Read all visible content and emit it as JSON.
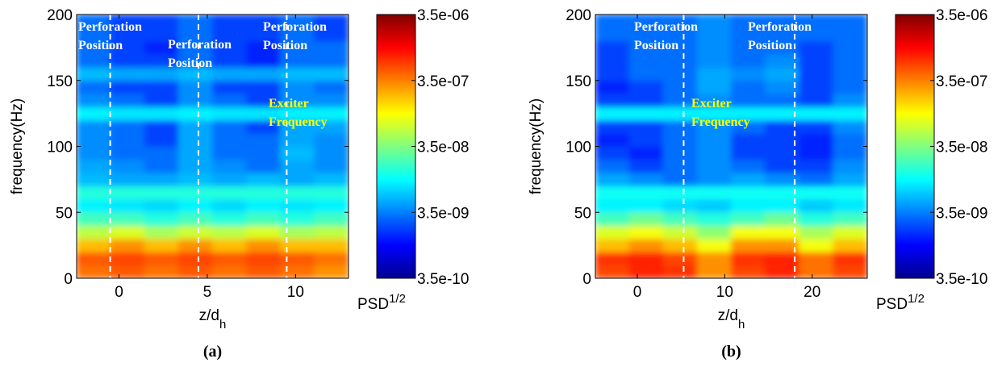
{
  "chart_data": [
    {
      "type": "heatmap",
      "caption": "(a)",
      "ylabel": "frequency(Hz)",
      "xlabel": "z/d",
      "xlabel_sub": "h",
      "colorbar_label": "PSD",
      "colorbar_label_sup": "1/2",
      "colormap": "jet",
      "color_scale": "log",
      "xlim": [
        -2.4,
        13
      ],
      "xticks": [
        0,
        5,
        10
      ],
      "ylim": [
        0,
        200
      ],
      "yticks": [
        0,
        50,
        100,
        150,
        200
      ],
      "clim": [
        3.5e-10,
        3.5e-06
      ],
      "cticks": [
        {
          "value": 3.5e-10,
          "label": "3.5e-10"
        },
        {
          "value": 3.5e-09,
          "label": "3.5e-09"
        },
        {
          "value": 3.5e-08,
          "label": "3.5e-08"
        },
        {
          "value": 3.5e-07,
          "label": "3.5e-07"
        },
        {
          "value": 3.5e-06,
          "label": "3.5e-06"
        }
      ],
      "perforation_z": [
        -0.5,
        4.5,
        9.5
      ],
      "annotations": [
        {
          "lines": [
            "Perforation",
            "Position"
          ],
          "color": "#ffffff"
        },
        {
          "lines": [
            "Perforation",
            "Position"
          ],
          "color": "#ffffff"
        },
        {
          "lines": [
            "Perforation",
            "Position"
          ],
          "color": "#ffffff"
        },
        {
          "lines": [
            "Exciter",
            "Frequency"
          ],
          "color": "#ffff00"
        }
      ],
      "x_bins": [
        -2.4,
        -0.475,
        1.45,
        3.375,
        5.3,
        7.225,
        9.15,
        11.075,
        13
      ],
      "y_bins": [
        0,
        10,
        20,
        30,
        40,
        50,
        60,
        70,
        80,
        90,
        100,
        110,
        120,
        130,
        140,
        150,
        160,
        170,
        180,
        190,
        200
      ],
      "values": [
        [
          4e-07,
          5e-07,
          4e-07,
          5e-07,
          4e-07,
          5e-07,
          4e-07,
          3e-07
        ],
        [
          5e-07,
          6e-07,
          5e-07,
          6e-07,
          5e-07,
          6e-07,
          5e-07,
          4e-07
        ],
        [
          2e-07,
          3e-07,
          2e-07,
          3e-07,
          2e-07,
          3e-07,
          2e-07,
          2e-07
        ],
        [
          6e-08,
          8e-08,
          5e-08,
          7e-08,
          6e-08,
          8e-08,
          5e-08,
          6e-08
        ],
        [
          2e-08,
          2e-08,
          1.5e-08,
          2e-08,
          1.5e-08,
          2e-08,
          1.5e-08,
          2e-08
        ],
        [
          1e-08,
          9e-09,
          8e-09,
          1e-08,
          8e-09,
          1e-08,
          9e-09,
          1e-08
        ],
        [
          1.5e-08,
          1.5e-08,
          1.5e-08,
          1.5e-08,
          1.5e-08,
          1.5e-08,
          1.5e-08,
          1.5e-08
        ],
        [
          6e-09,
          5e-09,
          5e-09,
          6e-09,
          5e-09,
          6e-09,
          5e-09,
          6e-09
        ],
        [
          5e-09,
          4e-09,
          3e-09,
          5e-09,
          4e-09,
          3e-09,
          5e-09,
          4e-09
        ],
        [
          4e-09,
          3e-09,
          3e-09,
          5e-09,
          3e-09,
          3e-09,
          6e-09,
          4e-09
        ],
        [
          4e-09,
          3e-09,
          2e-09,
          5e-09,
          3e-09,
          3e-09,
          5e-09,
          4e-09
        ],
        [
          4e-09,
          3e-09,
          2e-09,
          5e-09,
          3e-09,
          2e-09,
          5e-09,
          5e-09
        ],
        [
          1e-08,
          9e-09,
          9e-09,
          1e-08,
          9e-09,
          9e-09,
          1e-08,
          1e-08
        ],
        [
          4e-09,
          3e-09,
          2e-09,
          4e-09,
          3e-09,
          2e-09,
          4e-09,
          4e-09
        ],
        [
          3e-09,
          2e-09,
          2e-09,
          4e-09,
          2e-09,
          2e-09,
          4e-09,
          3e-09
        ],
        [
          6e-09,
          5e-09,
          5e-09,
          6e-09,
          5e-09,
          5e-09,
          6e-09,
          6e-09
        ],
        [
          3e-09,
          2e-09,
          2e-09,
          3e-09,
          2e-09,
          1.5e-09,
          3e-09,
          3e-09
        ],
        [
          3e-09,
          2e-09,
          1.5e-09,
          3e-09,
          2e-09,
          1.5e-09,
          3e-09,
          3e-09
        ],
        [
          3e-09,
          2e-09,
          2e-09,
          3e-09,
          2e-09,
          2e-09,
          3e-09,
          2e-09
        ],
        [
          3e-09,
          2e-09,
          2e-09,
          3e-09,
          2e-09,
          2e-09,
          3e-09,
          2e-09
        ]
      ]
    },
    {
      "type": "heatmap",
      "caption": "(b)",
      "ylabel": "frequency(Hz)",
      "xlabel": "z/d",
      "xlabel_sub": "h",
      "colorbar_label": "PSD",
      "colorbar_label_sup": "1/2",
      "colormap": "jet",
      "color_scale": "log",
      "xlim": [
        -4.8,
        26.3
      ],
      "xticks": [
        0,
        10,
        20
      ],
      "ylim": [
        0,
        200
      ],
      "yticks": [
        0,
        50,
        100,
        150,
        200
      ],
      "clim": [
        3.5e-10,
        3.5e-06
      ],
      "cticks": [
        {
          "value": 3.5e-10,
          "label": "3.5e-10"
        },
        {
          "value": 3.5e-09,
          "label": "3.5e-09"
        },
        {
          "value": 3.5e-08,
          "label": "3.5e-08"
        },
        {
          "value": 3.5e-07,
          "label": "3.5e-07"
        },
        {
          "value": 3.5e-06,
          "label": "3.5e-06"
        }
      ],
      "perforation_z": [
        5.3,
        18
      ],
      "annotations": [
        {
          "lines": [
            "Perforation",
            "Position"
          ],
          "color": "#ffffff"
        },
        {
          "lines": [
            "Perforation",
            "Position"
          ],
          "color": "#ffffff"
        },
        {
          "lines": [
            "Exciter",
            "Frequency"
          ],
          "color": "#ffff00"
        }
      ],
      "x_bins": [
        -4.8,
        -0.9125,
        2.975,
        6.8625,
        10.75,
        14.6375,
        18.525,
        22.4125,
        26.3
      ],
      "y_bins": [
        0,
        10,
        20,
        30,
        40,
        50,
        60,
        70,
        80,
        90,
        100,
        110,
        120,
        130,
        140,
        150,
        160,
        170,
        180,
        190,
        200
      ],
      "values": [
        [
          6e-07,
          8e-07,
          7e-07,
          3e-07,
          6e-07,
          8e-07,
          4e-07,
          6e-07
        ],
        [
          7e-07,
          8e-07,
          6e-07,
          3e-07,
          7e-07,
          8e-07,
          4e-07,
          7e-07
        ],
        [
          2e-07,
          3e-07,
          2e-07,
          1e-07,
          3e-07,
          3e-07,
          1e-07,
          2e-07
        ],
        [
          8e-08,
          1e-07,
          7e-08,
          4e-08,
          1e-07,
          1e-07,
          5e-08,
          8e-08
        ],
        [
          2e-08,
          3e-08,
          2e-08,
          1.5e-08,
          2e-08,
          3e-08,
          1.5e-08,
          2e-08
        ],
        [
          1e-08,
          1e-08,
          8e-09,
          7e-09,
          1e-08,
          1e-08,
          7e-09,
          9e-09
        ],
        [
          1.2e-08,
          1.2e-08,
          1.2e-08,
          1.2e-08,
          1.2e-08,
          1.2e-08,
          1.2e-08,
          1.2e-08
        ],
        [
          5e-09,
          4e-09,
          3e-09,
          4e-09,
          5e-09,
          4e-09,
          3e-09,
          5e-09
        ],
        [
          3e-09,
          2e-09,
          3e-09,
          4e-09,
          3e-09,
          2e-09,
          2e-09,
          4e-09
        ],
        [
          2e-09,
          1.5e-09,
          3e-09,
          4e-09,
          2e-09,
          2e-09,
          1.5e-09,
          3e-09
        ],
        [
          1.5e-09,
          2e-09,
          3e-09,
          4e-09,
          2e-09,
          2e-09,
          1.5e-09,
          3e-09
        ],
        [
          2e-09,
          2e-09,
          3e-09,
          4e-09,
          3e-09,
          2e-09,
          2e-09,
          4e-09
        ],
        [
          1e-08,
          1e-08,
          1e-08,
          1e-08,
          1e-08,
          1e-08,
          1e-08,
          1e-08
        ],
        [
          2e-09,
          2e-09,
          3e-09,
          4e-09,
          3e-09,
          3e-09,
          2e-09,
          4e-09
        ],
        [
          1.5e-09,
          2e-09,
          3e-09,
          5e-09,
          3e-09,
          4e-09,
          2e-09,
          3e-09
        ],
        [
          2e-09,
          3e-09,
          3e-09,
          5e-09,
          4e-09,
          5e-09,
          2e-09,
          3e-09
        ],
        [
          2e-09,
          3e-09,
          3e-09,
          4e-09,
          3e-09,
          4e-09,
          2e-09,
          3e-09
        ],
        [
          2e-09,
          3e-09,
          3e-09,
          4e-09,
          3e-09,
          3e-09,
          2e-09,
          3e-09
        ],
        [
          3e-09,
          3e-09,
          3e-09,
          4e-09,
          3e-09,
          3e-09,
          3e-09,
          3e-09
        ],
        [
          3e-09,
          3e-09,
          3e-09,
          4e-09,
          3e-09,
          3e-09,
          3e-09,
          3e-09
        ]
      ]
    }
  ]
}
